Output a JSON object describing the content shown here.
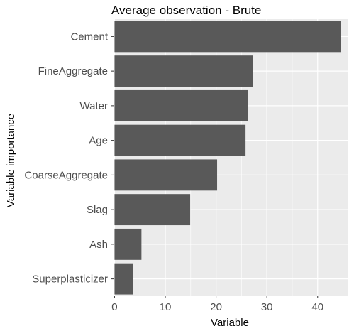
{
  "chart_data": {
    "type": "bar",
    "orientation": "horizontal",
    "title": "Average observation - Brute",
    "xlabel": "Variable",
    "ylabel": "Variable importance",
    "categories": [
      "Cement",
      "FineAggregate",
      "Water",
      "Age",
      "CoarseAggregate",
      "Slag",
      "Ash",
      "Superplasticizer"
    ],
    "values": [
      44.6,
      27.2,
      26.3,
      25.8,
      20.2,
      14.9,
      5.3,
      3.7
    ],
    "xlim": [
      -0.2,
      45.9
    ],
    "xticks": [
      0,
      10,
      20,
      30,
      40
    ],
    "grid": true,
    "colors": {
      "panel": "#ebebeb",
      "grid_major": "#ffffff",
      "bar": "#595959",
      "tick_text": "#4d4d4d"
    }
  }
}
